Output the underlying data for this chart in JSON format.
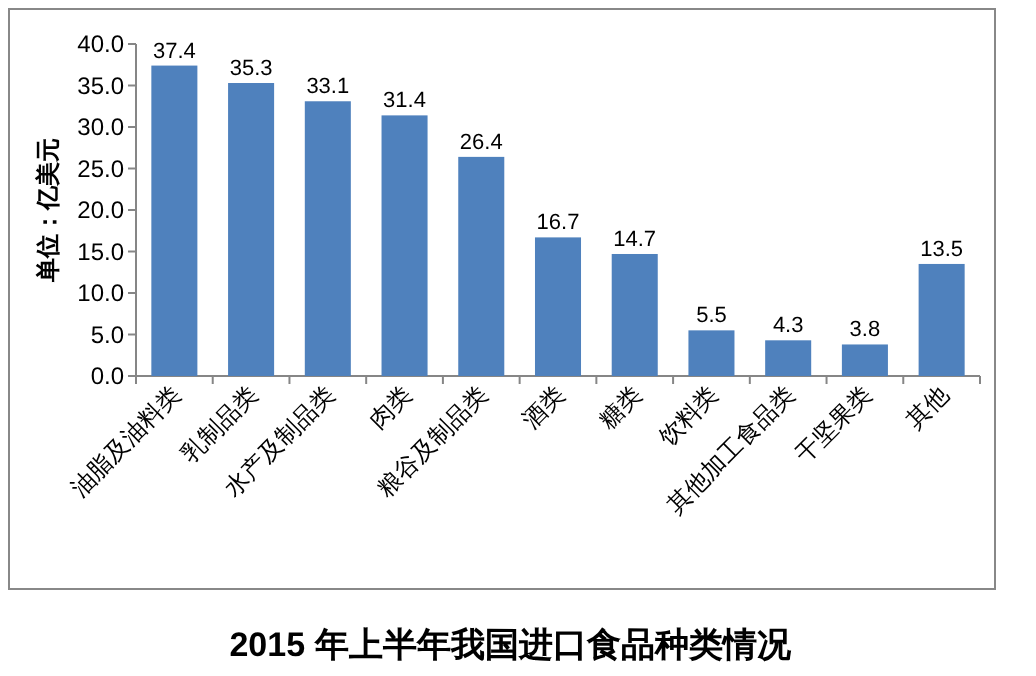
{
  "chart_data": {
    "type": "bar",
    "title": "2015 年上半年我国进口食品种类情况",
    "ylabel": "单位：亿美元",
    "categories": [
      "油脂及油料类",
      "乳制品类",
      "水产及制品类",
      "肉类",
      "粮谷及制品类",
      "酒类",
      "糖类",
      "饮料类",
      "其他加工食品类",
      "干坚果类",
      "其他"
    ],
    "values": [
      37.4,
      35.3,
      33.1,
      31.4,
      26.4,
      16.7,
      14.7,
      5.5,
      4.3,
      3.8,
      13.5
    ],
    "color": "#4f81bd",
    "ylim": [
      0,
      40
    ],
    "yticks": [
      {
        "value": 0,
        "label": "0.0"
      },
      {
        "value": 5,
        "label": "5.0"
      },
      {
        "value": 10,
        "label": "10.0"
      },
      {
        "value": 15,
        "label": "15.0"
      },
      {
        "value": 20,
        "label": "20.0"
      },
      {
        "value": 25,
        "label": "25.0"
      },
      {
        "value": 30,
        "label": "30.0"
      },
      {
        "value": 35,
        "label": "35.0"
      },
      {
        "value": 40,
        "label": "40.0"
      }
    ],
    "data_labels": true
  }
}
